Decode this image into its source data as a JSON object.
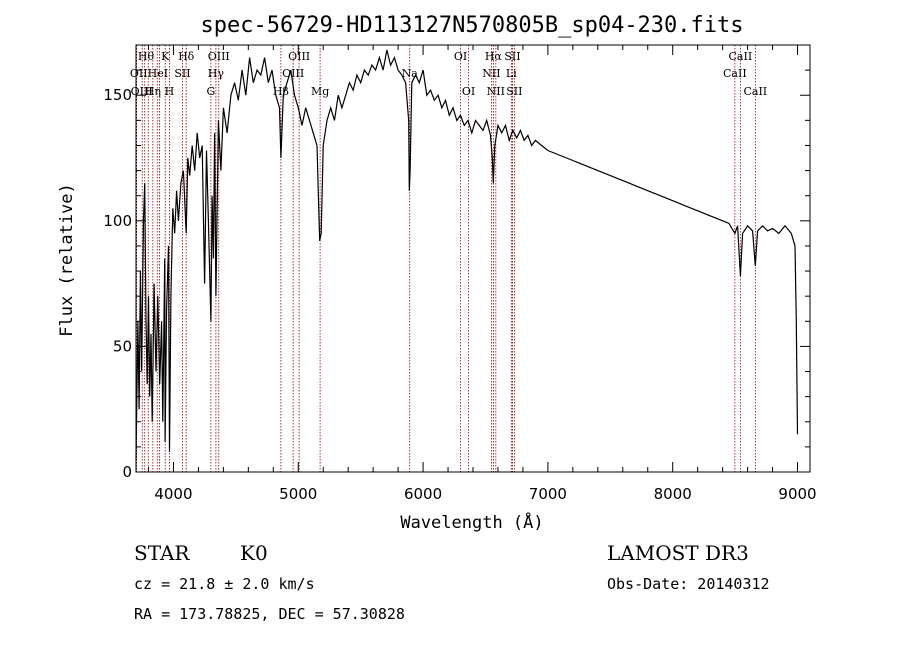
{
  "chart_data": {
    "type": "line",
    "title": "spec-56729-HD113127N570805B_sp04-230.fits",
    "xlabel": "Wavelength (Å)",
    "ylabel": "Flux (relative)",
    "xlim": [
      3700,
      9100
    ],
    "ylim": [
      0,
      170
    ],
    "xticks": [
      4000,
      5000,
      6000,
      7000,
      8000,
      9000
    ],
    "yticks": [
      0,
      50,
      100,
      150
    ],
    "series": [
      {
        "name": "spectrum",
        "points": [
          [
            3700,
            5
          ],
          [
            3715,
            60
          ],
          [
            3725,
            25
          ],
          [
            3735,
            80
          ],
          [
            3745,
            40
          ],
          [
            3760,
            100
          ],
          [
            3770,
            115
          ],
          [
            3780,
            60
          ],
          [
            3790,
            35
          ],
          [
            3800,
            70
          ],
          [
            3810,
            30
          ],
          [
            3820,
            55
          ],
          [
            3830,
            20
          ],
          [
            3845,
            75
          ],
          [
            3860,
            40
          ],
          [
            3875,
            70
          ],
          [
            3890,
            35
          ],
          [
            3905,
            60
          ],
          [
            3915,
            20
          ],
          [
            3930,
            85
          ],
          [
            3933,
            12
          ],
          [
            3945,
            65
          ],
          [
            3960,
            90
          ],
          [
            3968,
            8
          ],
          [
            3980,
            70
          ],
          [
            3995,
            105
          ],
          [
            4010,
            95
          ],
          [
            4025,
            112
          ],
          [
            4040,
            100
          ],
          [
            4060,
            115
          ],
          [
            4080,
            120
          ],
          [
            4102,
            95
          ],
          [
            4115,
            125
          ],
          [
            4130,
            118
          ],
          [
            4150,
            130
          ],
          [
            4170,
            120
          ],
          [
            4190,
            135
          ],
          [
            4210,
            125
          ],
          [
            4230,
            130
          ],
          [
            4250,
            75
          ],
          [
            4265,
            128
          ],
          [
            4280,
            100
          ],
          [
            4300,
            60
          ],
          [
            4310,
            110
          ],
          [
            4320,
            85
          ],
          [
            4330,
            135
          ],
          [
            4340,
            70
          ],
          [
            4360,
            140
          ],
          [
            4380,
            120
          ],
          [
            4400,
            145
          ],
          [
            4430,
            135
          ],
          [
            4460,
            150
          ],
          [
            4490,
            155
          ],
          [
            4520,
            148
          ],
          [
            4550,
            160
          ],
          [
            4580,
            150
          ],
          [
            4610,
            165
          ],
          [
            4640,
            155
          ],
          [
            4670,
            160
          ],
          [
            4700,
            158
          ],
          [
            4730,
            165
          ],
          [
            4760,
            155
          ],
          [
            4790,
            160
          ],
          [
            4820,
            150
          ],
          [
            4850,
            145
          ],
          [
            4861,
            125
          ],
          [
            4880,
            150
          ],
          [
            4910,
            155
          ],
          [
            4940,
            160
          ],
          [
            4970,
            150
          ],
          [
            5000,
            145
          ],
          [
            5030,
            138
          ],
          [
            5060,
            145
          ],
          [
            5090,
            140
          ],
          [
            5120,
            135
          ],
          [
            5150,
            130
          ],
          [
            5167,
            100
          ],
          [
            5172,
            92
          ],
          [
            5184,
            95
          ],
          [
            5200,
            130
          ],
          [
            5230,
            140
          ],
          [
            5260,
            145
          ],
          [
            5290,
            140
          ],
          [
            5320,
            150
          ],
          [
            5350,
            145
          ],
          [
            5380,
            150
          ],
          [
            5410,
            155
          ],
          [
            5440,
            152
          ],
          [
            5470,
            158
          ],
          [
            5500,
            155
          ],
          [
            5530,
            160
          ],
          [
            5560,
            158
          ],
          [
            5590,
            162
          ],
          [
            5620,
            160
          ],
          [
            5650,
            165
          ],
          [
            5680,
            160
          ],
          [
            5710,
            168
          ],
          [
            5740,
            162
          ],
          [
            5770,
            165
          ],
          [
            5800,
            160
          ],
          [
            5830,
            158
          ],
          [
            5860,
            155
          ],
          [
            5885,
            140
          ],
          [
            5890,
            112
          ],
          [
            5896,
            120
          ],
          [
            5910,
            155
          ],
          [
            5940,
            158
          ],
          [
            5970,
            155
          ],
          [
            6000,
            160
          ],
          [
            6030,
            150
          ],
          [
            6060,
            152
          ],
          [
            6090,
            148
          ],
          [
            6120,
            150
          ],
          [
            6150,
            145
          ],
          [
            6180,
            148
          ],
          [
            6210,
            142
          ],
          [
            6240,
            145
          ],
          [
            6270,
            140
          ],
          [
            6300,
            142
          ],
          [
            6330,
            138
          ],
          [
            6360,
            140
          ],
          [
            6390,
            135
          ],
          [
            6420,
            140
          ],
          [
            6450,
            138
          ],
          [
            6480,
            136
          ],
          [
            6510,
            140
          ],
          [
            6540,
            134
          ],
          [
            6555,
            125
          ],
          [
            6563,
            115
          ],
          [
            6575,
            130
          ],
          [
            6600,
            138
          ],
          [
            6630,
            135
          ],
          [
            6660,
            138
          ],
          [
            6690,
            132
          ],
          [
            6720,
            136
          ],
          [
            6750,
            133
          ],
          [
            6780,
            136
          ],
          [
            6810,
            132
          ],
          [
            6840,
            134
          ],
          [
            6870,
            130
          ],
          [
            6900,
            132
          ],
          [
            6950,
            130
          ],
          [
            7000,
            128
          ],
          [
            7050,
            127
          ],
          [
            7100,
            126
          ],
          [
            7150,
            125
          ],
          [
            7200,
            124
          ],
          [
            7250,
            123
          ],
          [
            7300,
            122
          ],
          [
            7350,
            121
          ],
          [
            7400,
            120
          ],
          [
            7450,
            119
          ],
          [
            7500,
            118
          ],
          [
            7550,
            117
          ],
          [
            7600,
            116
          ],
          [
            7650,
            115
          ],
          [
            7700,
            114
          ],
          [
            7750,
            113
          ],
          [
            7800,
            112
          ],
          [
            7850,
            111
          ],
          [
            7900,
            110
          ],
          [
            7950,
            109
          ],
          [
            8000,
            108
          ],
          [
            8050,
            107
          ],
          [
            8100,
            106
          ],
          [
            8150,
            105
          ],
          [
            8200,
            104
          ],
          [
            8250,
            103
          ],
          [
            8300,
            102
          ],
          [
            8350,
            101
          ],
          [
            8400,
            100
          ],
          [
            8450,
            99
          ],
          [
            8498,
            95
          ],
          [
            8520,
            98
          ],
          [
            8542,
            78
          ],
          [
            8560,
            95
          ],
          [
            8600,
            98
          ],
          [
            8640,
            96
          ],
          [
            8662,
            82
          ],
          [
            8680,
            96
          ],
          [
            8720,
            98
          ],
          [
            8760,
            96
          ],
          [
            8800,
            97
          ],
          [
            8850,
            95
          ],
          [
            8900,
            98
          ],
          [
            8950,
            95
          ],
          [
            8980,
            90
          ],
          [
            8990,
            60
          ],
          [
            9000,
            15
          ]
        ]
      }
    ],
    "spectral_lines": [
      {
        "x": 3705,
        "label": ""
      },
      {
        "x": 3750,
        "label": "OII"
      },
      {
        "x": 3770,
        "label": "Hθ"
      },
      {
        "x": 3798,
        "label": "OIII"
      },
      {
        "x": 3835,
        "label": "Hη"
      },
      {
        "x": 3870,
        "label": "HeI"
      },
      {
        "x": 3889,
        "label": "Hζ"
      },
      {
        "x": 3934,
        "label": "K"
      },
      {
        "x": 3968,
        "label": "H"
      },
      {
        "x": 4072,
        "label": "SII"
      },
      {
        "x": 4102,
        "label": "Hδ"
      },
      {
        "x": 4300,
        "label": "G"
      },
      {
        "x": 4340,
        "label": "Hγ"
      },
      {
        "x": 4363,
        "label": "OIII"
      },
      {
        "x": 4861,
        "label": "Hβ"
      },
      {
        "x": 4959,
        "label": "OIII"
      },
      {
        "x": 5007,
        "label": "OIII"
      },
      {
        "x": 5175,
        "label": "Mg"
      },
      {
        "x": 5893,
        "label": "Na"
      },
      {
        "x": 6300,
        "label": "OI"
      },
      {
        "x": 6364,
        "label": "OI"
      },
      {
        "x": 6548,
        "label": "NII"
      },
      {
        "x": 6563,
        "label": "Hα"
      },
      {
        "x": 6583,
        "label": "NII"
      },
      {
        "x": 6707,
        "label": "Li"
      },
      {
        "x": 6716,
        "label": "SII"
      },
      {
        "x": 6731,
        "label": "SII"
      },
      {
        "x": 8498,
        "label": "CaII"
      },
      {
        "x": 8542,
        "label": "CaII"
      },
      {
        "x": 8662,
        "label": "CaII"
      }
    ],
    "line_labels": [
      {
        "text": "Hθ",
        "x": 3780,
        "row": 1
      },
      {
        "text": "K",
        "x": 3934,
        "row": 1
      },
      {
        "text": "Hδ",
        "x": 4102,
        "row": 1
      },
      {
        "text": "OIII",
        "x": 4363,
        "row": 1
      },
      {
        "text": "OIII",
        "x": 5007,
        "row": 1
      },
      {
        "text": "OI",
        "x": 6300,
        "row": 1
      },
      {
        "text": "Hα",
        "x": 6563,
        "row": 1
      },
      {
        "text": "SII",
        "x": 6716,
        "row": 1
      },
      {
        "text": "CaII",
        "x": 8542,
        "row": 1
      },
      {
        "text": "OII",
        "x": 3722,
        "row": 2
      },
      {
        "text": "HeI",
        "x": 3875,
        "row": 2
      },
      {
        "text": "SII",
        "x": 4072,
        "row": 2
      },
      {
        "text": "Hγ",
        "x": 4340,
        "row": 2
      },
      {
        "text": "OIII",
        "x": 4959,
        "row": 2
      },
      {
        "text": "NII",
        "x": 6548,
        "row": 2
      },
      {
        "text": "Li",
        "x": 6707,
        "row": 2
      },
      {
        "text": "CaII",
        "x": 8498,
        "row": 2
      },
      {
        "text": "OIII",
        "x": 3745,
        "row": 3
      },
      {
        "text": "Hη",
        "x": 3835,
        "row": 3
      },
      {
        "text": "H",
        "x": 3968,
        "row": 3
      },
      {
        "text": "G",
        "x": 4300,
        "row": 3
      },
      {
        "text": "Hβ",
        "x": 4861,
        "row": 3
      },
      {
        "text": "Mg",
        "x": 5175,
        "row": 3
      },
      {
        "text": "Na",
        "x": 5893,
        "row": 2
      },
      {
        "text": "OI",
        "x": 6364,
        "row": 3
      },
      {
        "text": "NII",
        "x": 6583,
        "row": 3
      },
      {
        "text": "SII",
        "x": 6731,
        "row": 3
      },
      {
        "text": "CaII",
        "x": 8662,
        "row": 3
      }
    ]
  },
  "info": {
    "class": "STAR",
    "subclass": "K0",
    "survey": "LAMOST DR3",
    "cz": "cz = 21.8 ± 2.0 km/s",
    "obs_date": "Obs-Date: 20140312",
    "radec": "RA = 173.78825, DEC =  57.30828"
  },
  "colors": {
    "line": "#000000",
    "marker": "#8b0000",
    "background": "#ffffff"
  }
}
